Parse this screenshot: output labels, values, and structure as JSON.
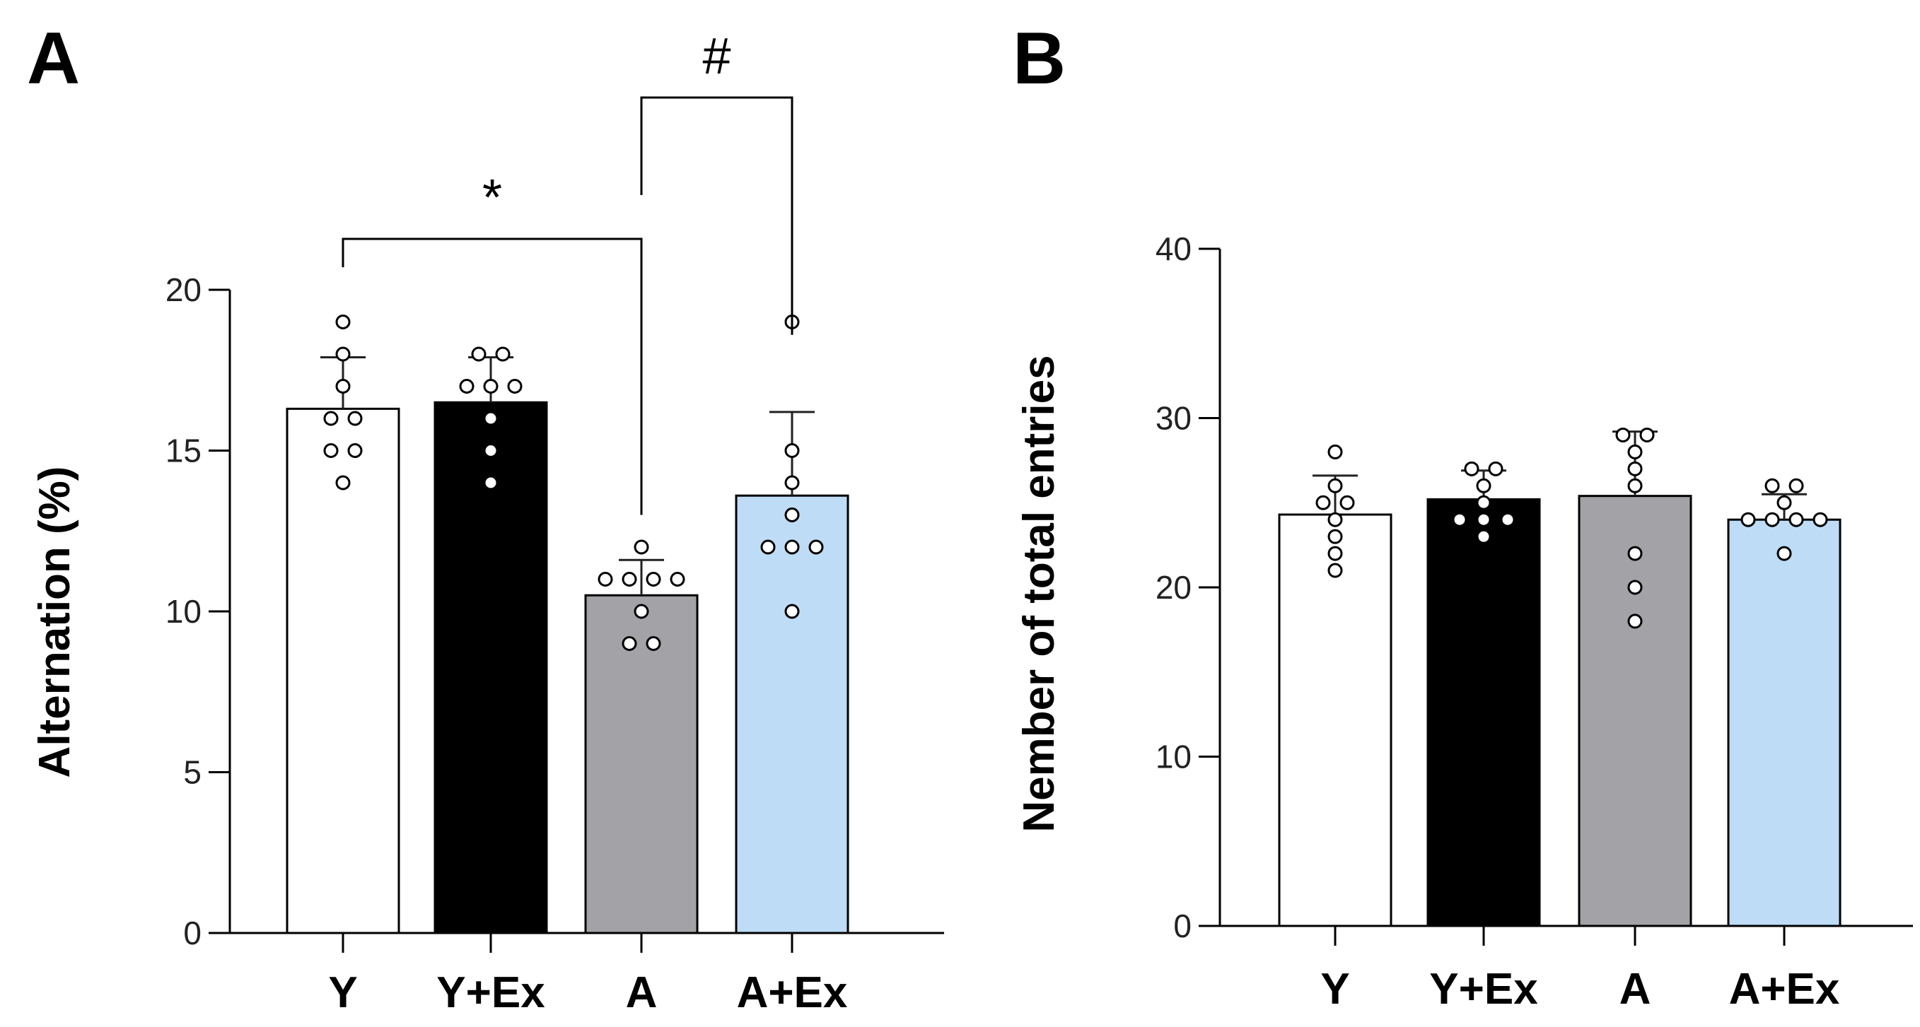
{
  "chart_data": [
    {
      "panel": "A",
      "type": "bar",
      "categories": [
        "Y",
        "Y+Ex",
        "A",
        "A+Ex"
      ],
      "values": [
        16.3,
        16.5,
        10.5,
        13.6
      ],
      "errors": [
        1.6,
        1.4,
        1.1,
        2.6
      ],
      "points": [
        [
          19,
          18,
          17,
          16,
          16,
          15,
          15,
          14
        ],
        [
          18,
          18,
          17,
          17,
          17,
          16,
          15,
          14
        ],
        [
          12,
          11,
          11,
          11,
          11,
          10,
          9,
          9
        ],
        [
          19,
          15,
          14,
          13,
          12,
          12,
          12,
          10
        ]
      ],
      "bar_colors": [
        "#ffffff",
        "#000000",
        "#a3a3a7",
        "#bedcf6"
      ],
      "point_fills": [
        "#ffffff",
        "#ffffff",
        "#ffffff",
        "#ffffff"
      ],
      "ylabel": "Alternation (%)",
      "xlabel": "",
      "ylim": [
        0,
        20
      ],
      "yticks": [
        0,
        5,
        10,
        15,
        20
      ],
      "ytick_labels": [
        "0",
        "5",
        "10",
        "15",
        "20"
      ],
      "significance": [
        {
          "from": 0,
          "to": 2,
          "label": "*",
          "color": "#1a2a40"
        },
        {
          "from": 2,
          "to": 3,
          "label": "#",
          "color": "#000000"
        }
      ]
    },
    {
      "panel": "B",
      "type": "bar",
      "categories": [
        "Y",
        "Y+Ex",
        "A",
        "A+Ex"
      ],
      "values": [
        24.3,
        25.2,
        25.4,
        24.0
      ],
      "errors": [
        2.3,
        1.7,
        3.8,
        1.5
      ],
      "points": [
        [
          28,
          26,
          25,
          25,
          24,
          23,
          22,
          21
        ],
        [
          27,
          27,
          26,
          25,
          24,
          24,
          24,
          23
        ],
        [
          29,
          29,
          28,
          27,
          26,
          22,
          20,
          18
        ],
        [
          26,
          26,
          25,
          24,
          24,
          24,
          24,
          22
        ]
      ],
      "bar_colors": [
        "#ffffff",
        "#000000",
        "#a3a3a7",
        "#bedcf6"
      ],
      "point_fills": [
        "#ffffff",
        "#ffffff",
        "#ffffff",
        "#ffffff"
      ],
      "ylabel": "Nember of total entries",
      "xlabel": "",
      "ylim": [
        0,
        40
      ],
      "yticks": [
        0,
        10,
        20,
        30,
        40
      ],
      "ytick_labels": [
        "0",
        "10",
        "20",
        "30",
        "40"
      ],
      "significance": []
    }
  ]
}
